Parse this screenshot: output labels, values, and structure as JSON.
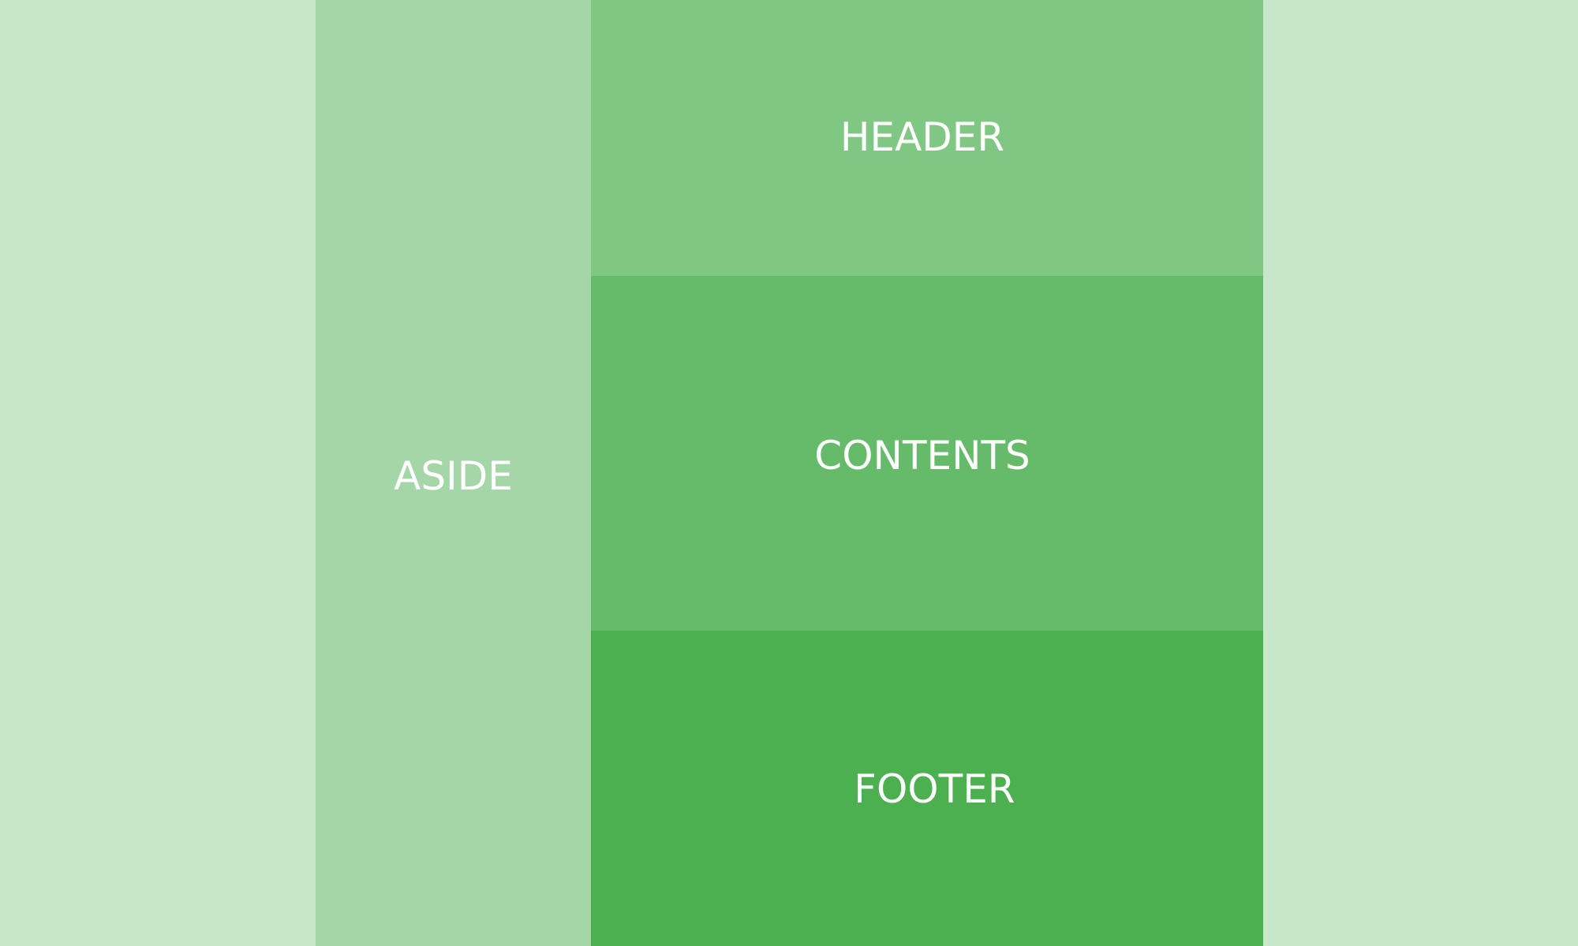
{
  "layout": {
    "aside": {
      "label": "ASIDE"
    },
    "header": {
      "label": "HEADER"
    },
    "contents": {
      "label": "CONTENTS"
    },
    "footer": {
      "label": "FOOTER"
    }
  },
  "colors": {
    "page_background": "#c8e6c9",
    "aside": "#a5d6a7",
    "header": "#81c784",
    "contents": "#66bb6a",
    "footer": "#4caf50",
    "label_text": "#ffffff"
  }
}
